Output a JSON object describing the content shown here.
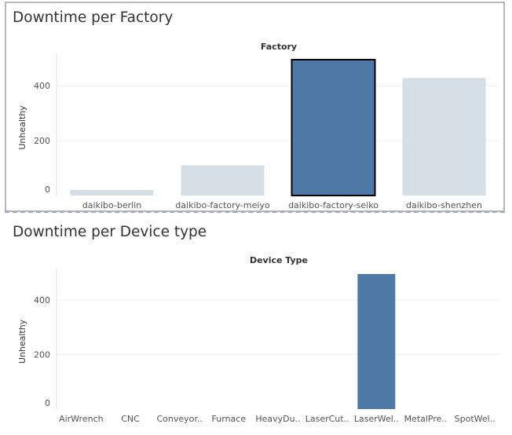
{
  "chart_data": [
    {
      "type": "bar",
      "title": "Downtime per Factory",
      "header": "Factory",
      "ylabel": "Unhealthy",
      "categories": [
        "daikibo-berlin",
        "daikibo-factory-meiyo",
        "daikibo-factory-seiko",
        "daikibo-shenzhen"
      ],
      "values": [
        20,
        110,
        495,
        428
      ],
      "ylim": [
        0,
        495
      ],
      "yticks": [
        0,
        200,
        400
      ],
      "highlighted": "daikibo-factory-seiko",
      "grid": true,
      "colors": {
        "highlight": "#4e79a7",
        "muted": "#d5dde5",
        "selected_outline": "#000000"
      }
    },
    {
      "type": "bar",
      "title": "Downtime per Device type",
      "header": "Device Type",
      "ylabel": "Unhealthy",
      "categories": [
        "AirWrench",
        "CNC",
        "Conveyor..",
        "Furnace",
        "HeavyDu..",
        "LaserCut..",
        "LaserWel..",
        "MetalPre..",
        "SpotWel.."
      ],
      "values": [
        0,
        0,
        0,
        0,
        0,
        0,
        495,
        0,
        0
      ],
      "ylim": [
        0,
        495
      ],
      "yticks": [
        0,
        200,
        400
      ],
      "grid": true,
      "colors": {
        "bar": "#4e79a7"
      }
    }
  ]
}
